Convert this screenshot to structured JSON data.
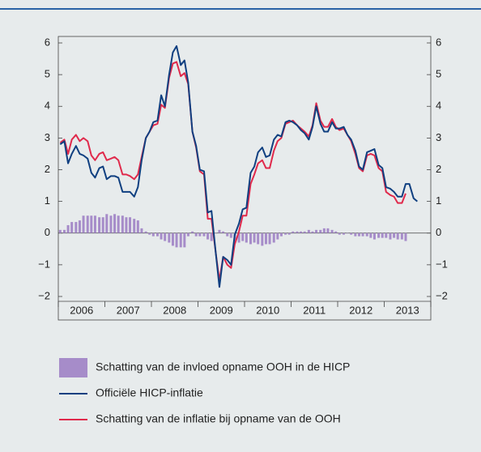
{
  "chart_data": {
    "type": "combo",
    "categories": [
      "2006",
      "2007",
      "2008",
      "2009",
      "2010",
      "2011",
      "2012",
      "2013"
    ],
    "xlim": [
      2006,
      2014
    ],
    "xticks": [
      2006,
      2007,
      2008,
      2009,
      2010,
      2011,
      2012,
      2013,
      2014
    ],
    "ylim": [
      -2,
      6
    ],
    "yticks": [
      {
        "value": -2,
        "label": "−2"
      },
      {
        "value": -1,
        "label": "−1"
      },
      0,
      1,
      2,
      3,
      4,
      5,
      6
    ],
    "x": [
      2006.04,
      2006.13,
      2006.21,
      2006.29,
      2006.38,
      2006.46,
      2006.54,
      2006.63,
      2006.71,
      2006.79,
      2006.88,
      2006.96,
      2007.04,
      2007.13,
      2007.21,
      2007.29,
      2007.38,
      2007.46,
      2007.54,
      2007.63,
      2007.71,
      2007.79,
      2007.88,
      2007.96,
      2008.04,
      2008.13,
      2008.21,
      2008.29,
      2008.38,
      2008.46,
      2008.54,
      2008.63,
      2008.71,
      2008.79,
      2008.88,
      2008.96,
      2009.04,
      2009.13,
      2009.21,
      2009.29,
      2009.38,
      2009.46,
      2009.54,
      2009.63,
      2009.71,
      2009.79,
      2009.88,
      2009.96,
      2010.04,
      2010.13,
      2010.21,
      2010.29,
      2010.38,
      2010.46,
      2010.54,
      2010.63,
      2010.71,
      2010.79,
      2010.88,
      2010.96,
      2011.04,
      2011.13,
      2011.21,
      2011.29,
      2011.38,
      2011.46,
      2011.54,
      2011.63,
      2011.71,
      2011.79,
      2011.88,
      2011.96,
      2012.04,
      2012.13,
      2012.21,
      2012.29,
      2012.38,
      2012.46,
      2012.54,
      2012.63,
      2012.71,
      2012.79,
      2012.88,
      2012.96,
      2013.04,
      2013.13,
      2013.21,
      2013.29,
      2013.38,
      2013.46,
      2013.54,
      2013.63,
      2013.71
    ],
    "series": [
      {
        "name": "Schatting van de invloed opname OOH in de HICP",
        "type": "bar",
        "color": "#a68cc9",
        "values": [
          0.1,
          0.1,
          0.25,
          0.35,
          0.35,
          0.4,
          0.55,
          0.55,
          0.55,
          0.55,
          0.5,
          0.5,
          0.6,
          0.55,
          0.6,
          0.55,
          0.55,
          0.5,
          0.5,
          0.45,
          0.4,
          0.15,
          0.05,
          -0.05,
          -0.1,
          -0.1,
          -0.2,
          -0.25,
          -0.3,
          -0.4,
          -0.45,
          -0.45,
          -0.45,
          -0.1,
          0.05,
          -0.1,
          -0.1,
          -0.1,
          -0.2,
          -0.25,
          0,
          0.1,
          0.05,
          -0.1,
          -0.15,
          -0.25,
          -0.3,
          -0.25,
          -0.3,
          -0.35,
          -0.3,
          -0.35,
          -0.4,
          -0.35,
          -0.35,
          -0.3,
          -0.2,
          -0.1,
          -0.05,
          -0.05,
          0.05,
          0.05,
          0.05,
          0.05,
          0.1,
          0.05,
          0.1,
          0.1,
          0.15,
          0.15,
          0.1,
          0.05,
          -0.05,
          -0.05,
          0,
          -0.05,
          -0.1,
          -0.1,
          -0.1,
          -0.1,
          -0.15,
          -0.2,
          -0.15,
          -0.15,
          -0.15,
          -0.2,
          -0.15,
          -0.2,
          -0.2,
          -0.25,
          null,
          null,
          null
        ]
      },
      {
        "name": "Officiële HICP-inflatie",
        "type": "line",
        "color": "#0f3f80",
        "values": [
          2.8,
          2.9,
          2.2,
          2.5,
          2.75,
          2.5,
          2.45,
          2.35,
          1.9,
          1.75,
          2.05,
          2.1,
          1.7,
          1.8,
          1.8,
          1.75,
          1.3,
          1.3,
          1.3,
          1.15,
          1.45,
          2.3,
          3.0,
          3.2,
          3.5,
          3.55,
          4.35,
          4.0,
          5.0,
          5.7,
          5.9,
          5.3,
          5.45,
          4.75,
          3.2,
          2.75,
          2.0,
          1.95,
          0.65,
          0.7,
          -0.6,
          -1.7,
          -0.75,
          -0.85,
          -1.0,
          -0.05,
          0.3,
          0.75,
          0.8,
          1.9,
          2.1,
          2.55,
          2.7,
          2.4,
          2.45,
          2.95,
          3.1,
          3.05,
          3.5,
          3.55,
          3.5,
          3.4,
          3.25,
          3.15,
          2.95,
          3.35,
          4.0,
          3.45,
          3.2,
          3.2,
          3.5,
          3.3,
          3.3,
          3.35,
          3.1,
          2.95,
          2.6,
          2.1,
          2.0,
          2.55,
          2.6,
          2.65,
          2.15,
          2.05,
          1.45,
          1.4,
          1.3,
          1.15,
          1.15,
          1.55,
          1.55,
          1.1,
          1.0
        ]
      },
      {
        "name": "Schatting van de inflatie bij opname van de OOH",
        "type": "line",
        "color": "#e0294b",
        "values": [
          2.85,
          2.95,
          2.5,
          2.95,
          3.1,
          2.9,
          3.0,
          2.9,
          2.45,
          2.3,
          2.5,
          2.55,
          2.3,
          2.35,
          2.4,
          2.3,
          1.85,
          1.85,
          1.8,
          1.7,
          1.85,
          2.4,
          3.0,
          3.2,
          3.4,
          3.45,
          4.05,
          3.95,
          4.9,
          5.35,
          5.4,
          4.95,
          5.05,
          4.7,
          3.2,
          2.7,
          1.95,
          1.85,
          0.45,
          0.45,
          -0.6,
          -1.5,
          -0.75,
          -1.0,
          -1.1,
          -0.35,
          0.05,
          0.55,
          0.55,
          1.55,
          1.85,
          2.2,
          2.3,
          2.05,
          2.05,
          2.6,
          2.9,
          3.0,
          3.45,
          3.5,
          3.55,
          3.4,
          3.3,
          3.2,
          3.05,
          3.4,
          4.1,
          3.55,
          3.35,
          3.35,
          3.6,
          3.35,
          3.25,
          3.3,
          3.1,
          2.9,
          2.5,
          2.05,
          1.95,
          2.45,
          2.5,
          2.45,
          2.05,
          1.95,
          1.3,
          1.2,
          1.15,
          0.95,
          0.95,
          1.25,
          null,
          null,
          null
        ]
      }
    ]
  }
}
